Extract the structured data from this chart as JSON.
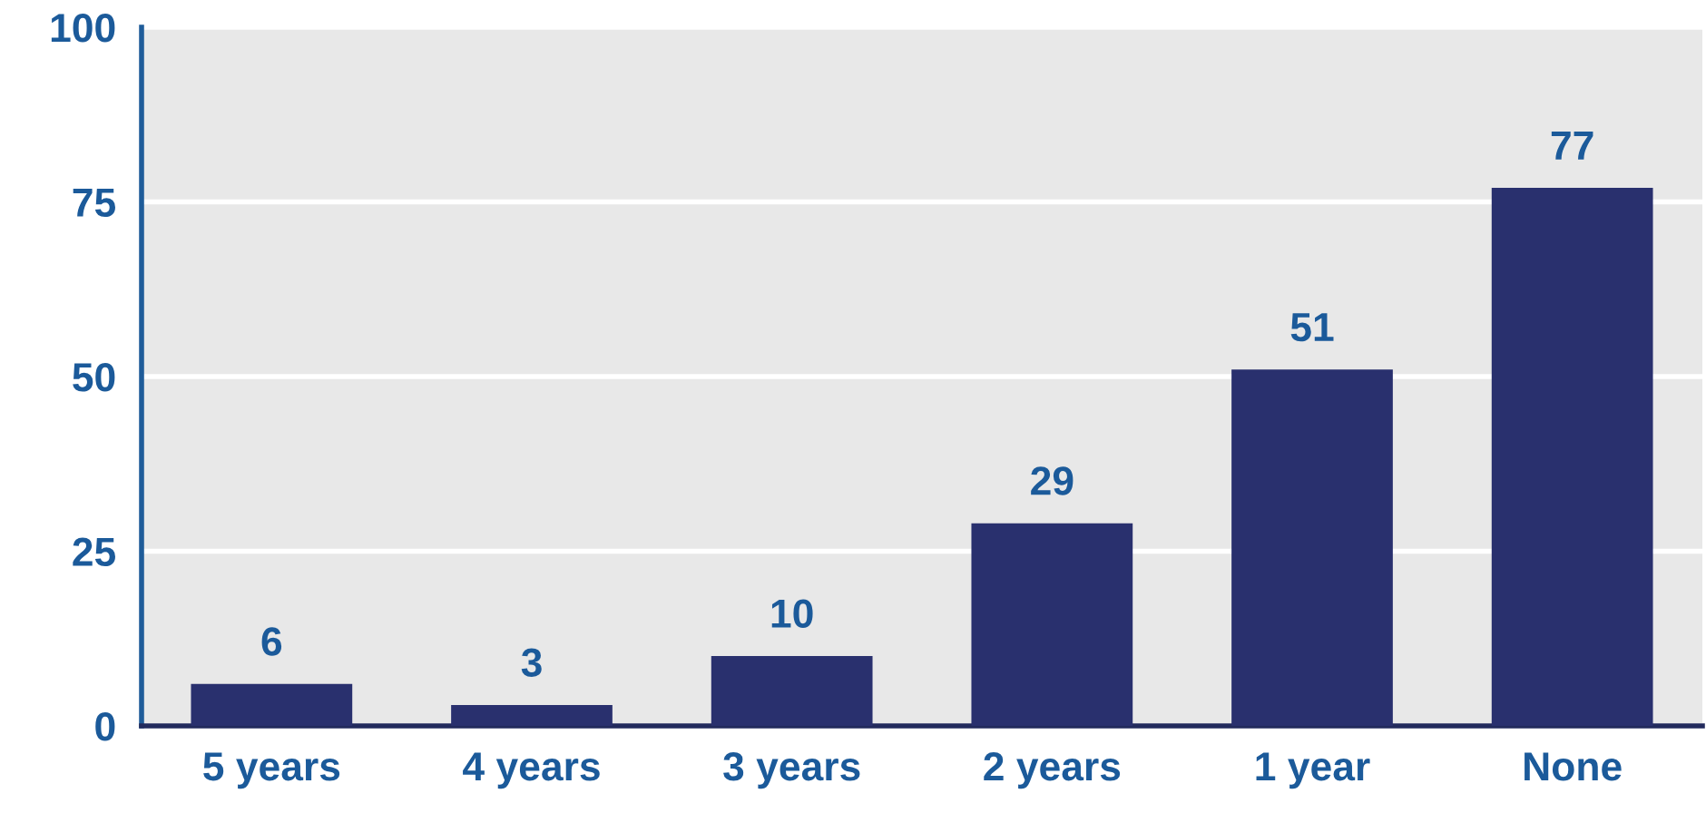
{
  "chart_data": {
    "type": "bar",
    "categories": [
      "5 years",
      "4 years",
      "3 years",
      "2 years",
      "1 year",
      "None"
    ],
    "values": [
      6,
      3,
      10,
      29,
      51,
      77
    ],
    "color": "#29306e",
    "ylim": [
      0,
      100
    ],
    "yticks": [
      0,
      25,
      50,
      75,
      100
    ],
    "grid": "y",
    "data_labels": true
  }
}
